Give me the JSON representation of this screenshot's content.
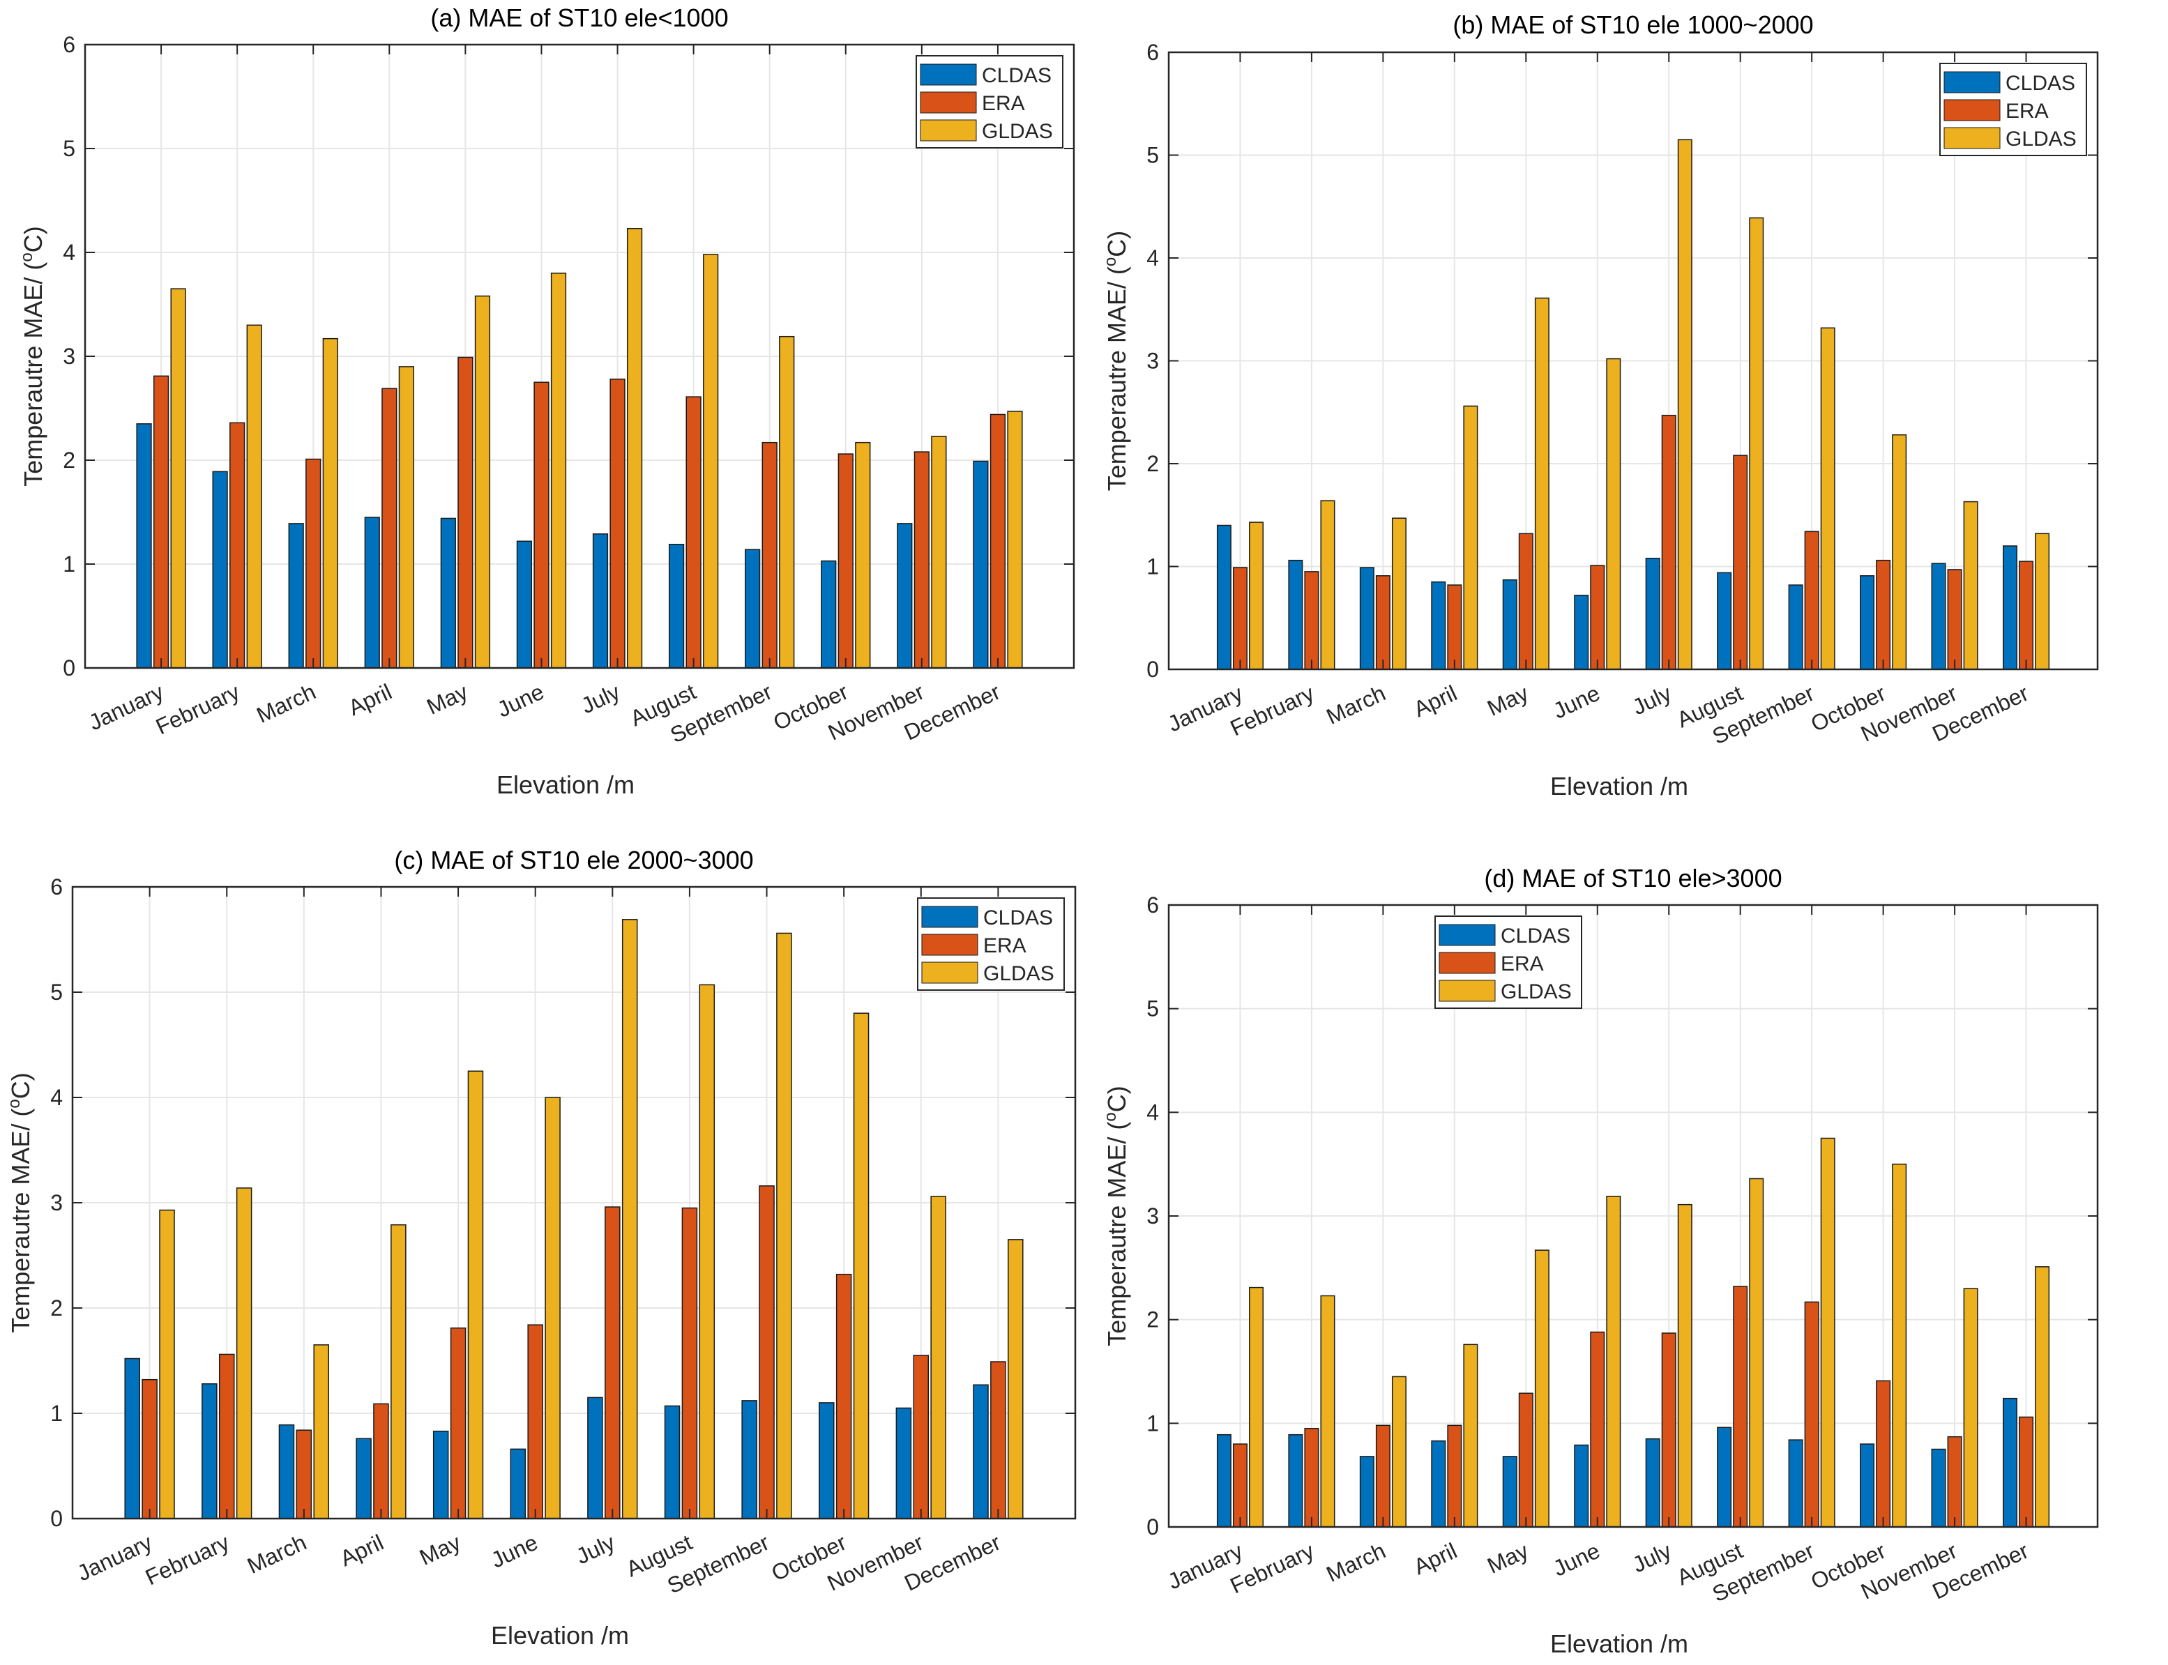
{
  "colors": {
    "CLDAS": "#0072BD",
    "ERA": "#D95319",
    "GLDAS": "#EDB120",
    "grid": "#e6e6e6",
    "axis": "#262626",
    "bar_edge": "#1a1a1a"
  },
  "chart_data": [
    {
      "type": "bar",
      "title": "(a) MAE of ST10 ele<1000",
      "xlabel": "Elevation /m",
      "ylabel": "Temperautre MAE/ (",
      "ylabel_sup": "o",
      "ylabel_tail": "C)",
      "ylim": [
        0,
        6
      ],
      "yticks": [
        "0",
        "1",
        "2",
        "3",
        "4",
        "5",
        "6"
      ],
      "grid": true,
      "legend_position": "top-right",
      "categories": [
        "January",
        "February",
        "March",
        "April",
        "May",
        "June",
        "July",
        "August",
        "September",
        "October",
        "November",
        "December"
      ],
      "series": [
        {
          "name": "CLDAS",
          "values": [
            2.35,
            1.89,
            1.39,
            1.45,
            1.44,
            1.22,
            1.29,
            1.19,
            1.14,
            1.03,
            1.39,
            1.99
          ]
        },
        {
          "name": "ERA",
          "values": [
            2.81,
            2.36,
            2.01,
            2.69,
            2.99,
            2.75,
            2.78,
            2.61,
            2.17,
            2.06,
            2.08,
            2.44
          ]
        },
        {
          "name": "GLDAS",
          "values": [
            3.65,
            3.3,
            3.17,
            2.9,
            3.58,
            3.8,
            4.23,
            3.98,
            3.19,
            2.17,
            2.23,
            2.47
          ]
        }
      ]
    },
    {
      "type": "bar",
      "title": "(b) MAE of ST10 ele 1000~2000",
      "xlabel": "Elevation /m",
      "ylabel": "Temperautre MAE/ (",
      "ylabel_sup": "o",
      "ylabel_tail": "C)",
      "ylim": [
        0,
        6
      ],
      "yticks": [
        "0",
        "1",
        "2",
        "3",
        "4",
        "5",
        "6"
      ],
      "grid": true,
      "legend_position": "top-right",
      "categories": [
        "January",
        "February",
        "March",
        "April",
        "May",
        "June",
        "July",
        "August",
        "September",
        "October",
        "November",
        "December"
      ],
      "series": [
        {
          "name": "CLDAS",
          "values": [
            1.4,
            1.06,
            0.99,
            0.85,
            0.87,
            0.72,
            1.08,
            0.94,
            0.82,
            0.91,
            1.03,
            1.2
          ]
        },
        {
          "name": "ERA",
          "values": [
            0.99,
            0.95,
            0.91,
            0.82,
            1.32,
            1.01,
            2.47,
            2.08,
            1.34,
            1.06,
            0.97,
            1.05
          ]
        },
        {
          "name": "GLDAS",
          "values": [
            1.43,
            1.64,
            1.47,
            2.56,
            3.61,
            3.02,
            5.15,
            4.39,
            3.32,
            2.28,
            1.63,
            1.32
          ]
        }
      ]
    },
    {
      "type": "bar",
      "title": "(c) MAE of ST10 ele 2000~3000",
      "xlabel": "Elevation /m",
      "ylabel": "Temperautre MAE/ (",
      "ylabel_sup": "o",
      "ylabel_tail": "C)",
      "ylim": [
        0,
        6
      ],
      "yticks": [
        "0",
        "1",
        "2",
        "3",
        "4",
        "5",
        "6"
      ],
      "grid": true,
      "legend_position": "top-right",
      "categories": [
        "January",
        "February",
        "March",
        "April",
        "May",
        "June",
        "July",
        "August",
        "September",
        "October",
        "November",
        "December"
      ],
      "series": [
        {
          "name": "CLDAS",
          "values": [
            1.52,
            1.28,
            0.89,
            0.76,
            0.83,
            0.66,
            1.15,
            1.07,
            1.12,
            1.1,
            1.05,
            1.27
          ]
        },
        {
          "name": "ERA",
          "values": [
            1.32,
            1.56,
            0.84,
            1.09,
            1.81,
            1.84,
            2.96,
            2.95,
            3.16,
            2.32,
            1.55,
            1.49
          ]
        },
        {
          "name": "GLDAS",
          "values": [
            2.93,
            3.14,
            1.65,
            2.79,
            4.25,
            4.0,
            5.69,
            5.07,
            5.56,
            4.8,
            3.06,
            2.65
          ]
        }
      ]
    },
    {
      "type": "bar",
      "title": "(d) MAE of ST10 ele>3000",
      "xlabel": "Elevation /m",
      "ylabel": "Temperautre MAE/ (",
      "ylabel_sup": "o",
      "ylabel_tail": "C)",
      "ylim": [
        0,
        6
      ],
      "yticks": [
        "0",
        "1",
        "2",
        "3",
        "4",
        "5",
        "6"
      ],
      "grid": true,
      "legend_position": "top-left",
      "categories": [
        "January",
        "February",
        "March",
        "April",
        "May",
        "June",
        "July",
        "August",
        "September",
        "October",
        "November",
        "December"
      ],
      "series": [
        {
          "name": "CLDAS",
          "values": [
            0.89,
            0.89,
            0.68,
            0.83,
            0.68,
            0.79,
            0.85,
            0.96,
            0.84,
            0.8,
            0.75,
            1.24
          ]
        },
        {
          "name": "ERA",
          "values": [
            0.8,
            0.95,
            0.98,
            0.98,
            1.29,
            1.88,
            1.87,
            2.32,
            2.17,
            1.41,
            0.87,
            1.06
          ]
        },
        {
          "name": "GLDAS",
          "values": [
            2.31,
            2.23,
            1.45,
            1.76,
            2.67,
            3.19,
            3.11,
            3.36,
            3.75,
            3.5,
            2.3,
            2.51
          ]
        }
      ]
    }
  ]
}
